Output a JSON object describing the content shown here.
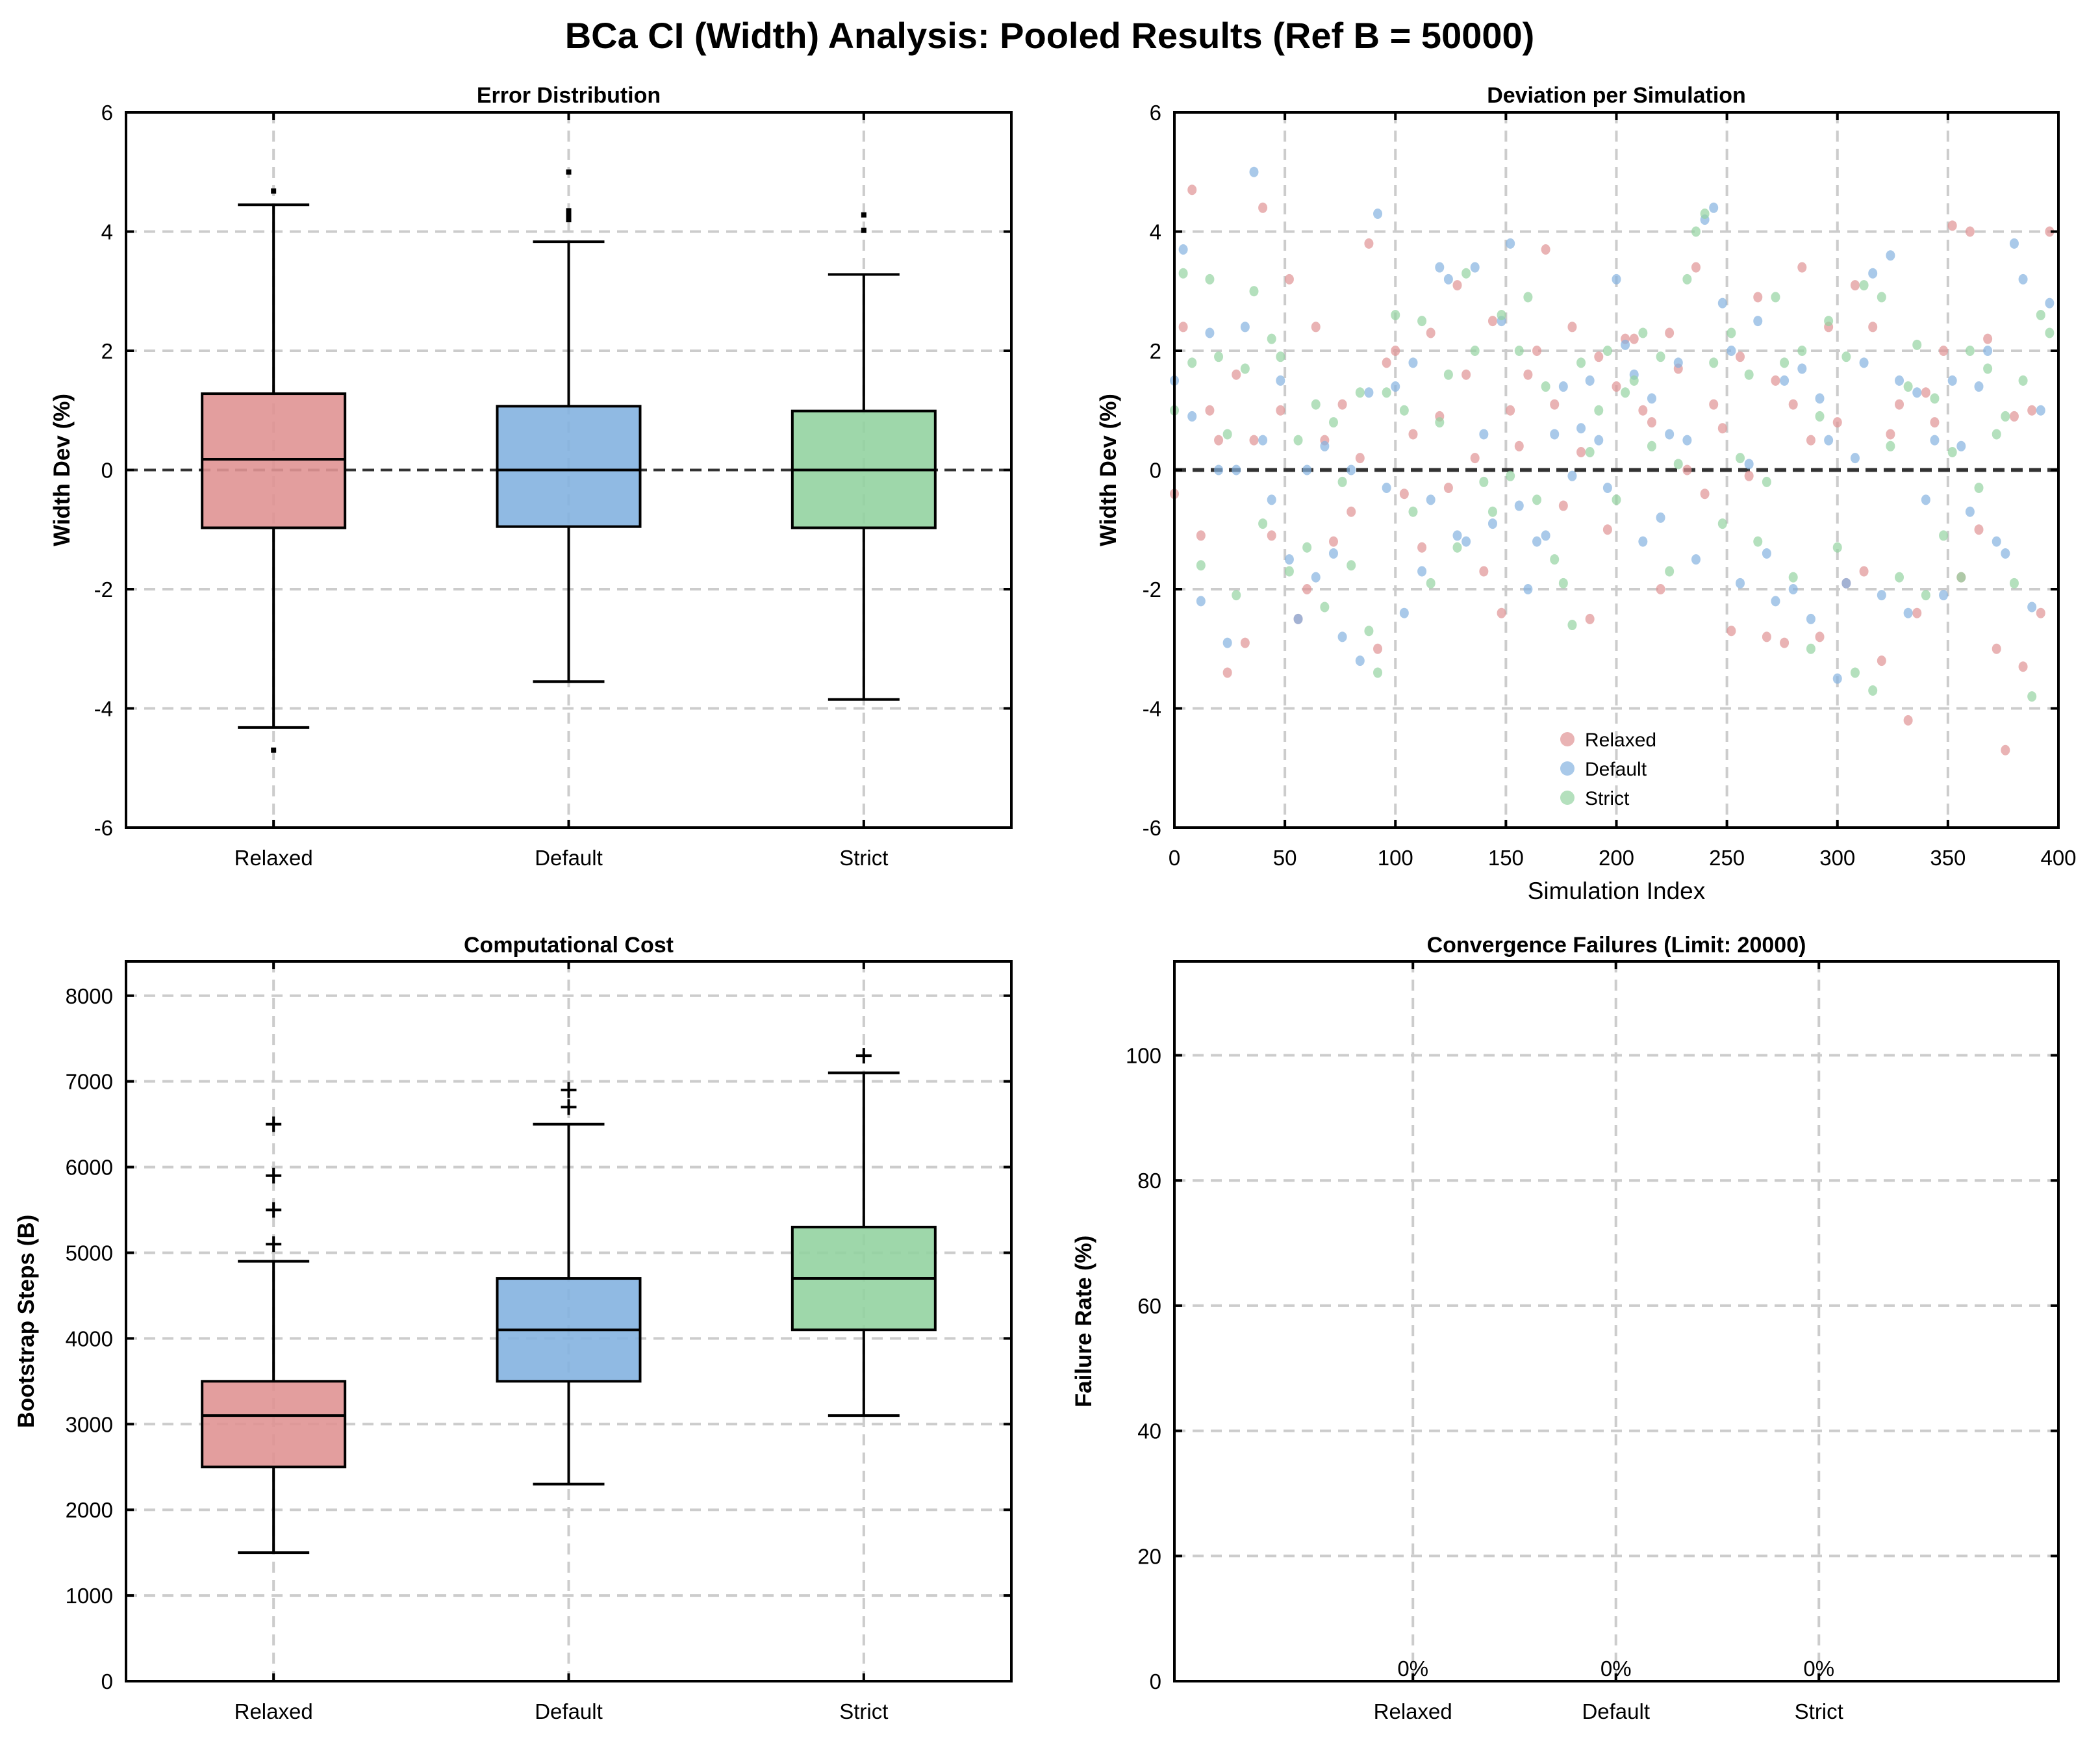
{
  "title": "BCa CI (Width) Analysis: Pooled Results (Ref B = 50000)",
  "colors": {
    "Relaxed": "#e09394",
    "Default": "#84b2e0",
    "Strict": "#94d3a1"
  },
  "chart_data": [
    {
      "type": "box",
      "title": "Error Distribution",
      "ylabel": "Width Dev (%)",
      "xlabel": "",
      "categories": [
        "Relaxed",
        "Default",
        "Strict"
      ],
      "ylim": [
        -6,
        6
      ],
      "yticks": [
        -6,
        -4,
        -2,
        0,
        2,
        4,
        6
      ],
      "grid": true,
      "reference_line": 0,
      "flier_marker": "dot",
      "boxes": [
        {
          "name": "Relaxed",
          "whislo": -4.32,
          "q1": -0.97,
          "med": 0.18,
          "q3": 1.28,
          "whishi": 4.45,
          "fliers": [
            4.68,
            -4.7
          ]
        },
        {
          "name": "Default",
          "whislo": -3.55,
          "q1": -0.95,
          "med": 0.0,
          "q3": 1.07,
          "whishi": 3.83,
          "fliers": [
            5.0,
            4.2,
            4.25,
            4.3,
            4.35
          ]
        },
        {
          "name": "Strict",
          "whislo": -3.85,
          "q1": -0.97,
          "med": 0.0,
          "q3": 0.99,
          "whishi": 3.28,
          "fliers": [
            4.28,
            4.02
          ]
        }
      ]
    },
    {
      "type": "scatter",
      "title": "Deviation per Simulation",
      "xlabel": "Simulation Index",
      "ylabel": "Width Dev (%)",
      "xlim": [
        0,
        400
      ],
      "ylim": [
        -6,
        6
      ],
      "xticks": [
        0,
        50,
        100,
        150,
        200,
        250,
        300,
        350,
        400
      ],
      "yticks": [
        -6,
        -4,
        -2,
        0,
        2,
        4,
        6
      ],
      "grid": true,
      "reference_line": 0,
      "legend": "bottom-center",
      "x": [
        0,
        4,
        8,
        12,
        16,
        20,
        24,
        28,
        32,
        36,
        40,
        44,
        48,
        52,
        56,
        60,
        64,
        68,
        72,
        76,
        80,
        84,
        88,
        92,
        96,
        100,
        104,
        108,
        112,
        116,
        120,
        124,
        128,
        132,
        136,
        140,
        144,
        148,
        152,
        156,
        160,
        164,
        168,
        172,
        176,
        180,
        184,
        188,
        192,
        196,
        200,
        204,
        208,
        212,
        216,
        220,
        224,
        228,
        232,
        236,
        240,
        244,
        248,
        252,
        256,
        260,
        264,
        268,
        272,
        276,
        280,
        284,
        288,
        292,
        296,
        300,
        304,
        308,
        312,
        316,
        320,
        324,
        328,
        332,
        336,
        340,
        344,
        348,
        352,
        356,
        360,
        364,
        368,
        372,
        376,
        380,
        384,
        388,
        392,
        396
      ],
      "series": [
        {
          "name": "Relaxed",
          "values": [
            -0.4,
            2.4,
            4.7,
            -1.1,
            1.0,
            0.5,
            -3.4,
            1.6,
            -2.9,
            0.5,
            4.4,
            -1.1,
            1.0,
            3.2,
            -2.5,
            -2.0,
            2.4,
            0.5,
            -1.2,
            1.1,
            -0.7,
            0.2,
            3.8,
            -3.0,
            1.8,
            2.0,
            -0.4,
            0.6,
            -1.3,
            2.3,
            0.9,
            -0.3,
            3.1,
            1.6,
            0.2,
            -1.7,
            2.5,
            -2.4,
            1.0,
            0.4,
            1.6,
            2.0,
            3.7,
            1.1,
            -0.6,
            2.4,
            0.3,
            -2.5,
            1.9,
            -1.0,
            1.4,
            2.2,
            2.2,
            1.0,
            0.8,
            -2.0,
            2.3,
            1.7,
            0.0,
            3.4,
            -0.4,
            1.1,
            0.7,
            -2.7,
            1.9,
            -0.1,
            2.9,
            -2.8,
            1.5,
            -2.9,
            1.1,
            3.4,
            0.5,
            -2.8,
            2.4,
            0.8,
            -1.9,
            3.1,
            -1.7,
            2.4,
            -3.2,
            0.6,
            1.1,
            -4.2,
            -2.4,
            1.3,
            0.8,
            2.0,
            4.1,
            -1.8,
            4.0,
            -1.0,
            2.2,
            -3.0,
            -4.7,
            0.9,
            -3.3,
            1.0,
            -2.4,
            4.0
          ]
        },
        {
          "name": "Default",
          "values": [
            1.5,
            3.7,
            0.9,
            -2.2,
            2.3,
            0.0,
            -2.9,
            0.0,
            2.4,
            5.0,
            0.5,
            -0.5,
            1.5,
            -1.5,
            -2.5,
            0.0,
            -1.8,
            0.4,
            -1.4,
            -2.8,
            0.0,
            -3.2,
            1.3,
            4.3,
            -0.3,
            1.4,
            -2.4,
            1.8,
            -1.7,
            -0.5,
            3.4,
            3.2,
            -1.1,
            -1.2,
            3.4,
            0.6,
            -0.9,
            2.5,
            3.8,
            -0.6,
            -2.0,
            -1.2,
            -1.1,
            0.6,
            1.4,
            -0.1,
            0.7,
            1.5,
            0.5,
            -0.3,
            3.2,
            2.1,
            1.6,
            -1.2,
            1.2,
            -0.8,
            0.6,
            1.8,
            0.5,
            -1.5,
            4.2,
            4.4,
            2.8,
            2.0,
            -1.9,
            0.1,
            2.5,
            -1.4,
            -2.2,
            1.5,
            -2.0,
            1.7,
            -2.5,
            1.2,
            0.5,
            -3.5,
            -1.9,
            0.2,
            1.8,
            3.3,
            -2.1,
            3.6,
            1.5,
            -2.4,
            1.3,
            -0.5,
            0.5,
            -2.1,
            1.5,
            0.4,
            -0.7,
            1.4,
            2.0,
            -1.2,
            -1.4,
            3.8,
            3.2,
            -2.3,
            1.0,
            2.8
          ]
        },
        {
          "name": "Strict",
          "values": [
            1.0,
            3.3,
            1.8,
            -1.6,
            3.2,
            1.9,
            0.6,
            -2.1,
            1.7,
            3.0,
            -0.9,
            2.2,
            1.9,
            -1.7,
            0.5,
            -1.3,
            1.1,
            -2.3,
            0.8,
            -0.2,
            -1.6,
            1.3,
            -2.7,
            -3.4,
            1.3,
            2.6,
            1.0,
            -0.7,
            2.5,
            -1.9,
            0.8,
            1.6,
            -1.3,
            3.3,
            2.0,
            -0.2,
            -0.7,
            2.6,
            -0.1,
            2.0,
            2.9,
            -0.5,
            1.4,
            -1.5,
            -1.9,
            -2.6,
            1.8,
            0.3,
            1.0,
            2.0,
            -0.5,
            1.3,
            1.5,
            2.3,
            0.4,
            1.9,
            -1.7,
            0.1,
            3.2,
            4.0,
            4.3,
            1.8,
            -0.9,
            2.3,
            0.2,
            1.6,
            -1.2,
            -0.2,
            2.9,
            1.8,
            -1.8,
            2.0,
            -3.0,
            0.9,
            2.5,
            -1.3,
            1.9,
            -3.4,
            3.1,
            -3.7,
            2.9,
            0.4,
            -1.8,
            1.4,
            2.1,
            -2.1,
            1.2,
            -1.1,
            0.3,
            -1.8,
            2.0,
            -0.3,
            1.7,
            0.6,
            0.9,
            -1.9,
            1.5,
            -3.8,
            2.6,
            2.3
          ]
        }
      ]
    },
    {
      "type": "box",
      "title": "Computational Cost",
      "ylabel": "Bootstrap Steps (B)",
      "xlabel": "",
      "categories": [
        "Relaxed",
        "Default",
        "Strict"
      ],
      "ylim": [
        0,
        8400
      ],
      "yticks": [
        0,
        1000,
        2000,
        3000,
        4000,
        5000,
        6000,
        7000,
        8000
      ],
      "grid": true,
      "flier_marker": "plus",
      "boxes": [
        {
          "name": "Relaxed",
          "whislo": 1500,
          "q1": 2500,
          "med": 3100,
          "q3": 3500,
          "whishi": 4900,
          "fliers": [
            5100,
            5500,
            5900,
            6500
          ]
        },
        {
          "name": "Default",
          "whislo": 2300,
          "q1": 3500,
          "med": 4100,
          "q3": 4700,
          "whishi": 6500,
          "fliers": [
            6700,
            6900
          ]
        },
        {
          "name": "Strict",
          "whislo": 3100,
          "q1": 4100,
          "med": 4700,
          "q3": 5300,
          "whishi": 7100,
          "fliers": [
            7300
          ]
        }
      ]
    },
    {
      "type": "bar",
      "title": "Convergence Failures (Limit: 20000)",
      "ylabel": "Failure Rate (%)",
      "xlabel": "",
      "categories": [
        "Relaxed",
        "Default",
        "Strict"
      ],
      "values": [
        0,
        0,
        0
      ],
      "data_labels": [
        "0%",
        "0%",
        "0%"
      ],
      "ylim": [
        0,
        115
      ],
      "yticks": [
        0,
        20,
        40,
        60,
        80,
        100
      ],
      "grid": true
    }
  ]
}
